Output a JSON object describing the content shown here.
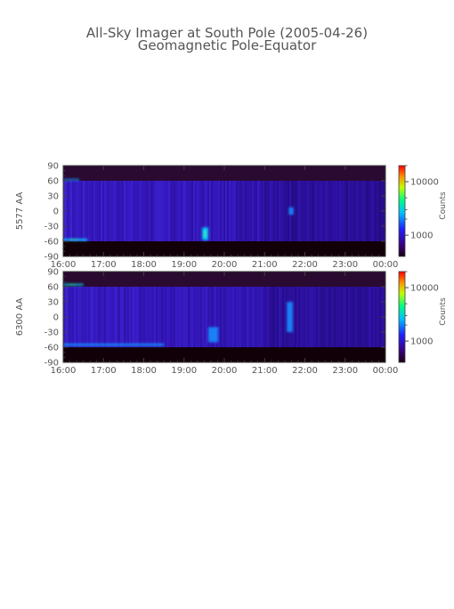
{
  "title": "All-Sky Imager at South Pole (2005-04-26)",
  "subtitle": "Geomagnetic Pole-Equator",
  "colors": {
    "axis": "#404040",
    "text": "#555555",
    "background": "#ffffff"
  },
  "chart_data": [
    {
      "type": "heatmap",
      "ylabel": "5577 AA",
      "colorbar_label": "Counts",
      "colorbar_ticks": [
        "10000",
        "1000"
      ],
      "colorbar_values": [
        10000,
        1000
      ],
      "colorbar_range": [
        400,
        20000
      ],
      "colorbar_scale": "log",
      "x_tick_labels": [
        "16:00",
        "17:00",
        "18:00",
        "19:00",
        "20:00",
        "21:00",
        "22:00",
        "23:00",
        "00:00"
      ],
      "x_range": [
        "16:00",
        "00:00"
      ],
      "y_tick_labels": [
        "90",
        "60",
        "30",
        "0",
        "-30",
        "-60",
        "-90"
      ],
      "y_tick_values": [
        90,
        60,
        30,
        0,
        -30,
        -60,
        -90
      ],
      "ylim": [
        -90,
        90
      ],
      "valid_band": [
        -60,
        60
      ],
      "features": [
        {
          "t": 16.0,
          "t_end": 16.6,
          "lat": -57,
          "width": 4,
          "level": 0.55
        },
        {
          "t": 19.45,
          "t_end": 19.6,
          "lat": -45,
          "width": 25,
          "level": 0.6
        },
        {
          "t": 21.6,
          "t_end": 21.72,
          "lat": 0,
          "width": 15,
          "level": 0.5
        },
        {
          "t": 16.0,
          "t_end": 16.4,
          "lat": 62,
          "width": 3,
          "level": 0.35
        }
      ]
    },
    {
      "type": "heatmap",
      "ylabel": "6300 AA",
      "colorbar_label": "Counts",
      "colorbar_ticks": [
        "10000",
        "1000"
      ],
      "colorbar_values": [
        10000,
        1000
      ],
      "colorbar_range": [
        400,
        20000
      ],
      "colorbar_scale": "log",
      "x_tick_labels": [
        "16:00",
        "17:00",
        "18:00",
        "19:00",
        "20:00",
        "21:00",
        "22:00",
        "23:00",
        "00:00"
      ],
      "x_range": [
        "16:00",
        "00:00"
      ],
      "y_tick_labels": [
        "90",
        "60",
        "30",
        "0",
        "-30",
        "-60",
        "-90"
      ],
      "y_tick_values": [
        90,
        60,
        30,
        0,
        -30,
        -60,
        -90
      ],
      "ylim": [
        -90,
        90
      ],
      "valid_band": [
        -60,
        60
      ],
      "features": [
        {
          "t": 16.0,
          "t_end": 18.5,
          "lat": -55,
          "width": 5,
          "level": 0.5
        },
        {
          "t": 16.0,
          "t_end": 16.5,
          "lat": 64,
          "width": 3,
          "level": 0.55
        },
        {
          "t": 19.6,
          "t_end": 19.85,
          "lat": -35,
          "width": 30,
          "level": 0.45
        },
        {
          "t": 21.55,
          "t_end": 21.7,
          "lat": 0,
          "width": 60,
          "level": 0.35
        }
      ]
    }
  ]
}
